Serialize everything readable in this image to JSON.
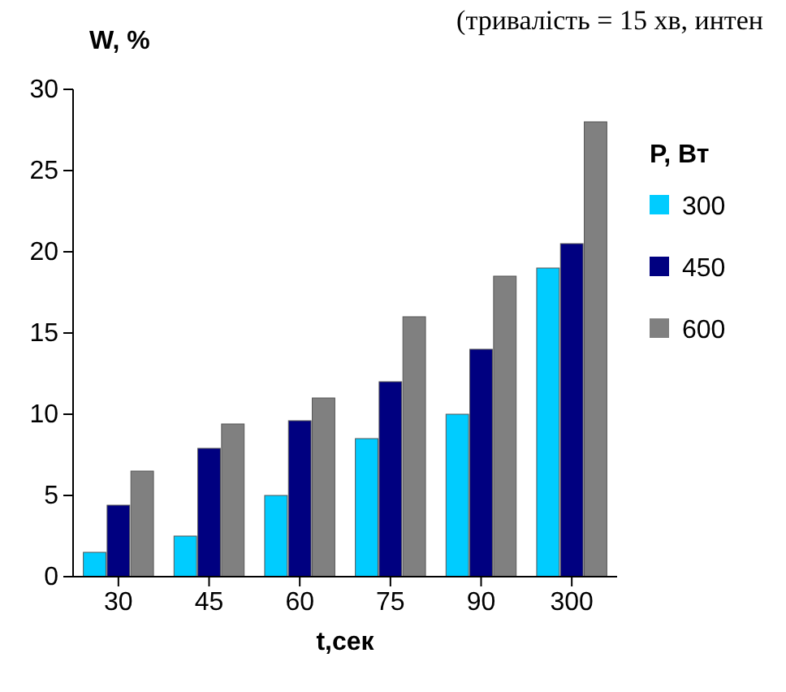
{
  "chart_data": {
    "type": "bar",
    "annotations": [
      "(тривалість = 15 хв, интен"
    ],
    "ylabel": "W, %",
    "xlabel": "t,сек",
    "legend_title": "P, Вт",
    "categories": [
      "30",
      "45",
      "60",
      "75",
      "90",
      "300"
    ],
    "series": [
      {
        "name": "300",
        "color": "#00ccff",
        "values": [
          1.5,
          2.5,
          5,
          8.5,
          10,
          19
        ]
      },
      {
        "name": "450",
        "color": "#000080",
        "values": [
          4.4,
          7.9,
          9.6,
          12,
          14,
          20.5
        ]
      },
      {
        "name": "600",
        "color": "#808080",
        "values": [
          6.5,
          9.4,
          11,
          16,
          18.5,
          28
        ]
      }
    ],
    "ylim": [
      0,
      30
    ],
    "yticks": [
      0,
      5,
      10,
      15,
      20,
      25,
      30
    ],
    "grid": false,
    "legend": "right"
  }
}
